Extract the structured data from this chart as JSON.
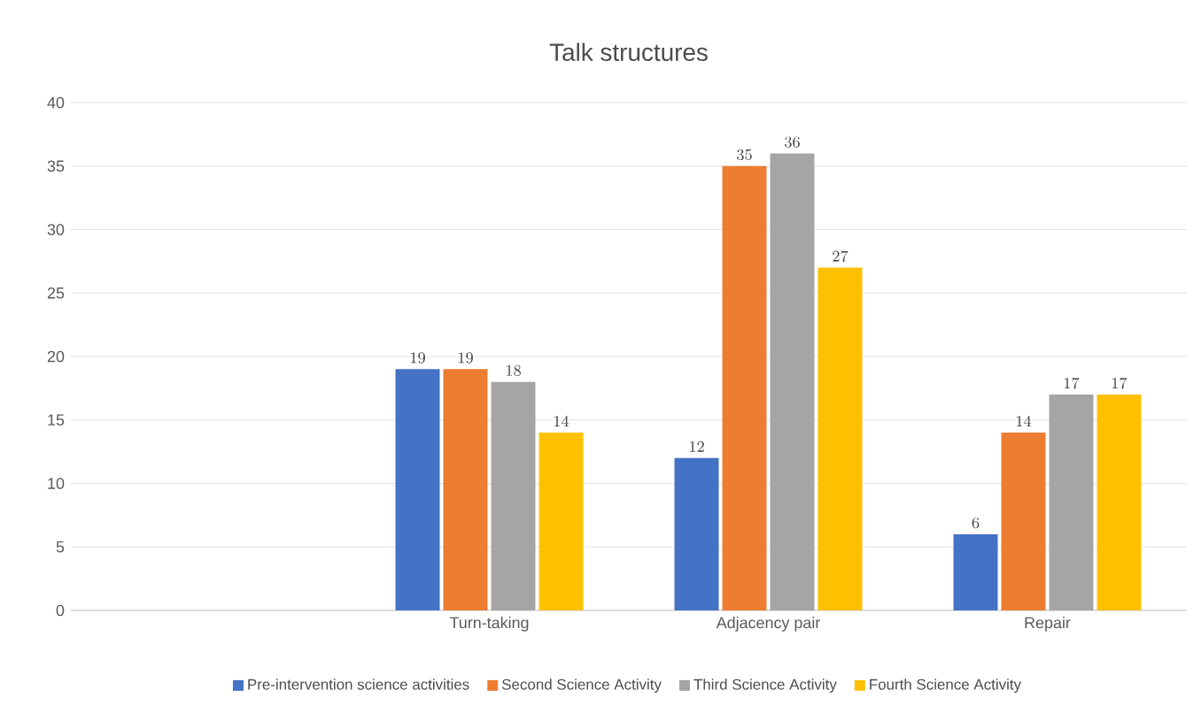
{
  "chart_data": {
    "type": "bar",
    "title": "Talk structures",
    "categories": [
      null,
      "Turn-taking",
      "Adjacency pair",
      "Repair"
    ],
    "series": [
      {
        "name": "Pre-intervention science activities",
        "color": "#4472c4",
        "values": [
          null,
          19,
          12,
          6
        ]
      },
      {
        "name": "Second Science Activity",
        "color": "#ed7d31",
        "values": [
          null,
          19,
          35,
          14
        ]
      },
      {
        "name": "Third Science Activity",
        "color": "#a5a5a5",
        "values": [
          null,
          18,
          36,
          17
        ]
      },
      {
        "name": "Fourth Science Activity",
        "color": "#ffc000",
        "values": [
          null,
          14,
          27,
          17
        ]
      }
    ],
    "ylim": [
      0,
      40
    ],
    "yticks": [
      0,
      5,
      10,
      15,
      20,
      25,
      30,
      35,
      40
    ],
    "grid": "y",
    "legend": "bottom",
    "data_labels": true
  }
}
